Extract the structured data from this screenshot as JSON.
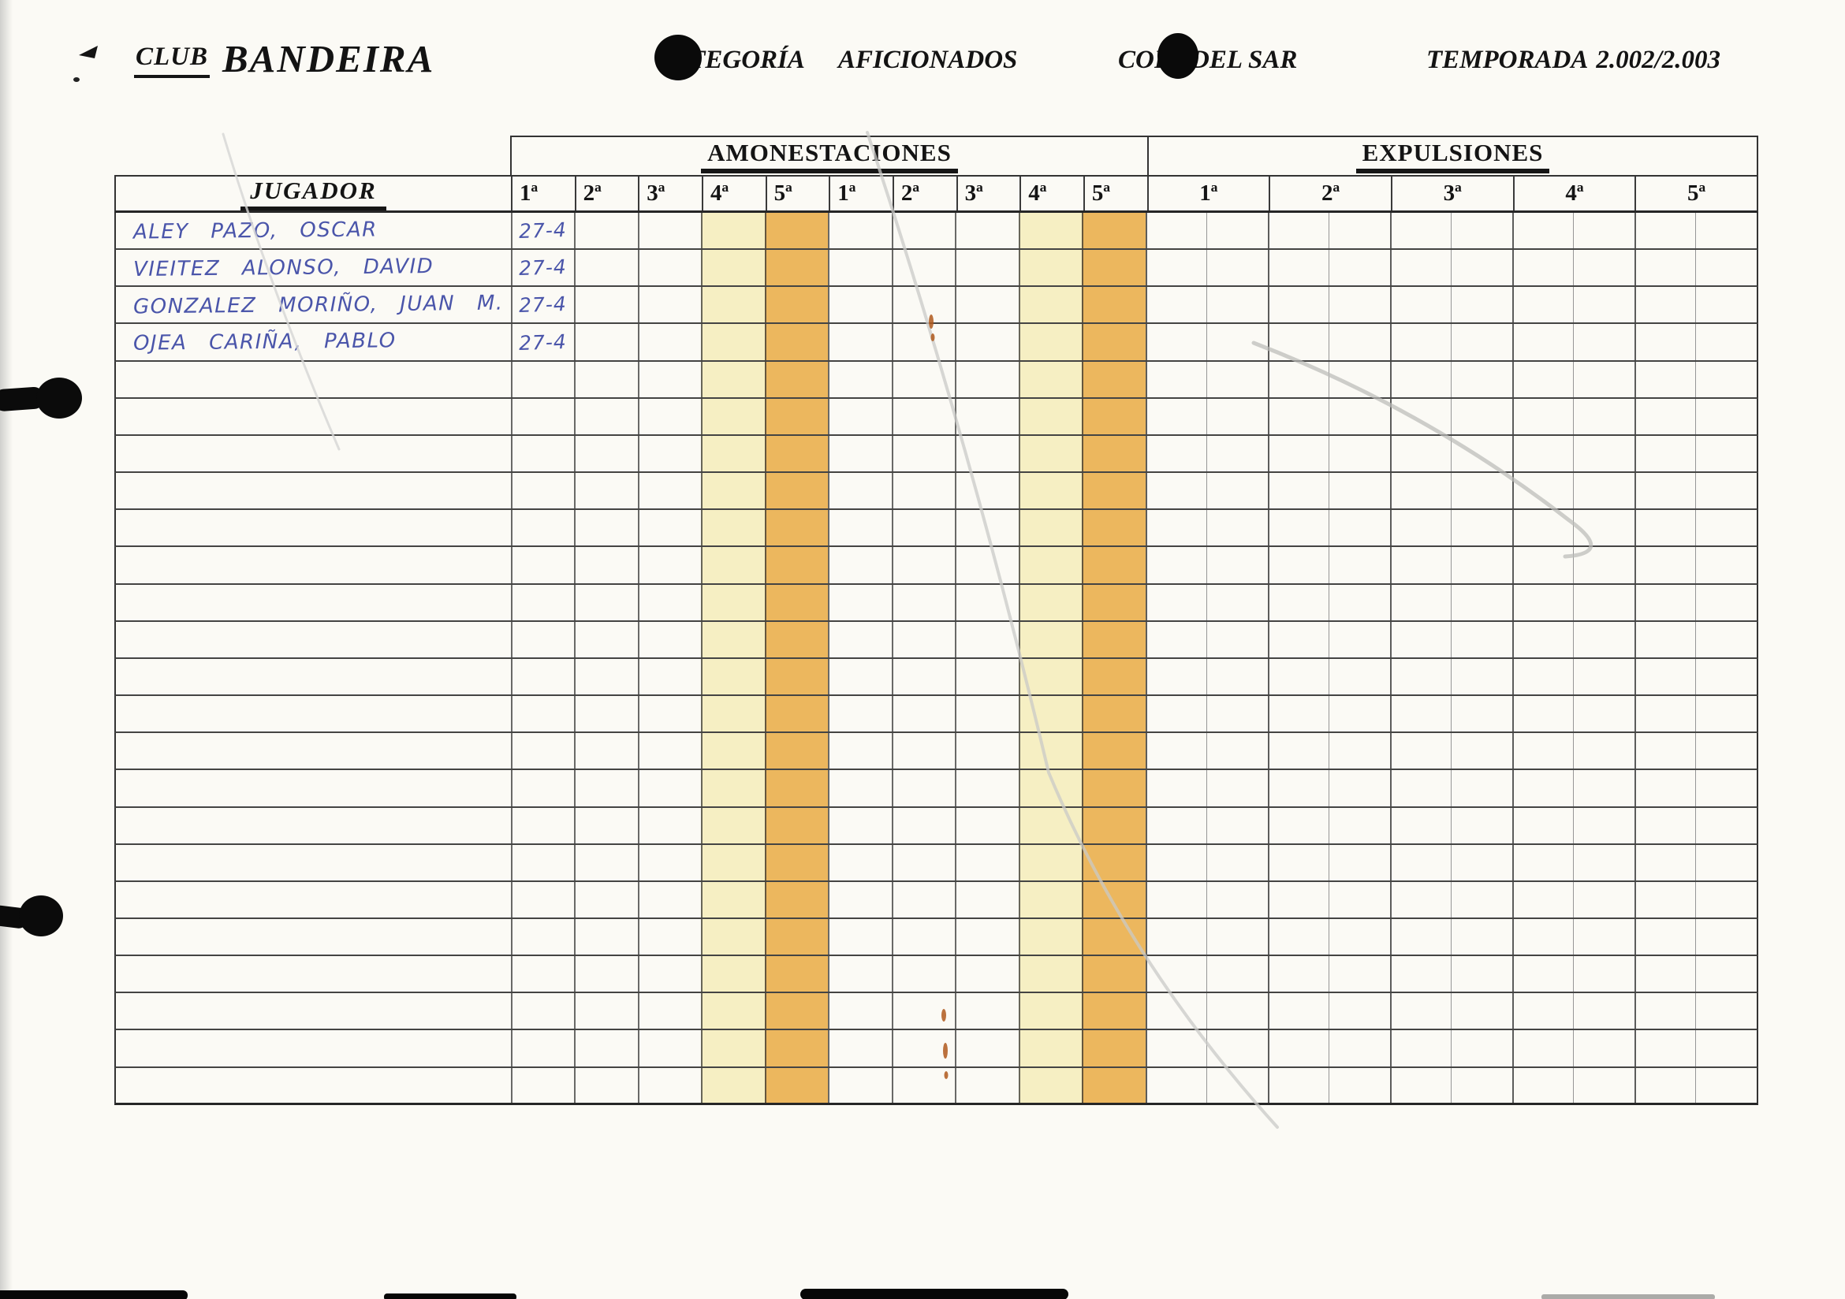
{
  "header": {
    "club_label": "CLUB",
    "club_name": "BANDEIRA",
    "categoria_label": "CATEGORÍA",
    "categoria_value": "AFICIONADOS",
    "competition_name": "COPA DEL SAR",
    "temporada_label": "TEMPORADA",
    "temporada_value": "2.002/2.003"
  },
  "table": {
    "section_amonestaciones": "AMONESTACIONES",
    "section_expulsiones": "EXPULSIONES",
    "jugador_header": "JUGADOR",
    "amonestaciones_columns": [
      "1ª",
      "2ª",
      "3ª",
      "4ª",
      "5ª",
      "1ª",
      "2ª",
      "3ª",
      "4ª",
      "5ª"
    ],
    "expulsiones_columns": [
      "1ª",
      "2ª",
      "3ª",
      "4ª",
      "5ª"
    ],
    "highlight_cream_columns": [
      3,
      8
    ],
    "highlight_orange_columns": [
      4,
      9
    ],
    "players": [
      {
        "name": "ALEY PAZO, OSCAR",
        "amonestaciones": [
          "27-4",
          "",
          "",
          "",
          "",
          "",
          "",
          "",
          "",
          ""
        ],
        "expulsiones": [
          "",
          "",
          "",
          "",
          ""
        ]
      },
      {
        "name": "VIEITEZ ALONSO, DAVID",
        "amonestaciones": [
          "27-4",
          "",
          "",
          "",
          "",
          "",
          "",
          "",
          "",
          ""
        ],
        "expulsiones": [
          "",
          "",
          "",
          "",
          ""
        ]
      },
      {
        "name": "GONZALEZ MORIÑO, JUAN M.",
        "amonestaciones": [
          "27-4",
          "",
          "",
          "",
          "",
          "",
          "",
          "",
          "",
          ""
        ],
        "expulsiones": [
          "",
          "",
          "",
          "",
          ""
        ]
      },
      {
        "name": "OJEA CARIÑA, PABLO",
        "amonestaciones": [
          "27-4",
          "",
          "",
          "",
          "",
          "",
          "",
          "",
          "",
          ""
        ],
        "expulsiones": [
          "",
          "",
          "",
          "",
          ""
        ]
      }
    ],
    "empty_row_count": 20,
    "colors": {
      "highlight_cream": "#f6efc3",
      "highlight_orange": "#ecb75e",
      "ink_blue": "#4a55aa"
    }
  }
}
